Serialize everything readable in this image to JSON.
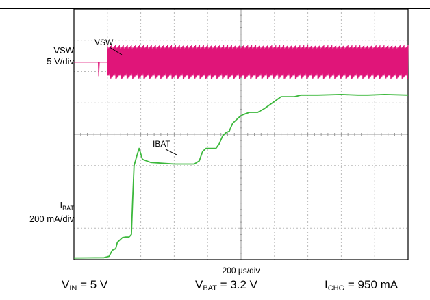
{
  "chart_data": {
    "type": "line",
    "x_per_division": "200 µs/div",
    "divisions": {
      "x": 10,
      "y": 8
    },
    "grid": true,
    "annotations": [
      "VSW",
      "IBAT"
    ],
    "series": [
      {
        "name": "VSW",
        "scale_main": "VSW",
        "scale_sub": "5 V/div",
        "color": "#e0157a",
        "x": [
          0.0,
          0.73,
          0.74,
          0.76,
          1.0,
          10.0
        ],
        "y": [
          6.3,
          6.3,
          5.85,
          6.3,
          6.3,
          6.3
        ],
        "switching_start_div": 1.0,
        "switching_envelope_div": [
          5.75,
          6.85
        ]
      },
      {
        "name": "IBAT",
        "scale_main": "I",
        "scale_sub_main": "BAT",
        "scale_sub": "200 mA/div",
        "color": "#3cb83c",
        "x": [
          0.0,
          0.9,
          1.05,
          1.15,
          1.25,
          1.3,
          1.45,
          1.55,
          1.65,
          1.72,
          1.76,
          1.8,
          1.88,
          1.95,
          2.05,
          2.3,
          3.0,
          3.6,
          3.75,
          3.85,
          3.95,
          4.25,
          4.35,
          4.45,
          4.55,
          4.65,
          4.75,
          4.85,
          4.95,
          5.05,
          5.25,
          5.5,
          5.7,
          6.2,
          6.6,
          6.8,
          7.0,
          7.3,
          8.0,
          8.5,
          8.8,
          9.3,
          10.0
        ],
        "y": [
          0.05,
          0.06,
          0.1,
          0.3,
          0.35,
          0.55,
          0.7,
          0.72,
          0.72,
          0.8,
          2.0,
          3.0,
          3.3,
          3.55,
          3.2,
          3.1,
          3.05,
          3.05,
          3.15,
          3.45,
          3.55,
          3.55,
          3.7,
          3.95,
          4.05,
          4.1,
          4.35,
          4.45,
          4.55,
          4.62,
          4.7,
          4.7,
          4.82,
          5.2,
          5.2,
          5.25,
          5.25,
          5.25,
          5.27,
          5.25,
          5.25,
          5.27,
          5.25
        ]
      }
    ]
  },
  "footer": {
    "vin_main": "V",
    "vin_sub": "IN",
    "vin_value": " = 5 V",
    "vbat_main": "V",
    "vbat_sub": "BAT",
    "vbat_value": " = 3.2 V",
    "ichg_main": "I",
    "ichg_sub": "CHG",
    "ichg_value": " = 950 mA"
  }
}
